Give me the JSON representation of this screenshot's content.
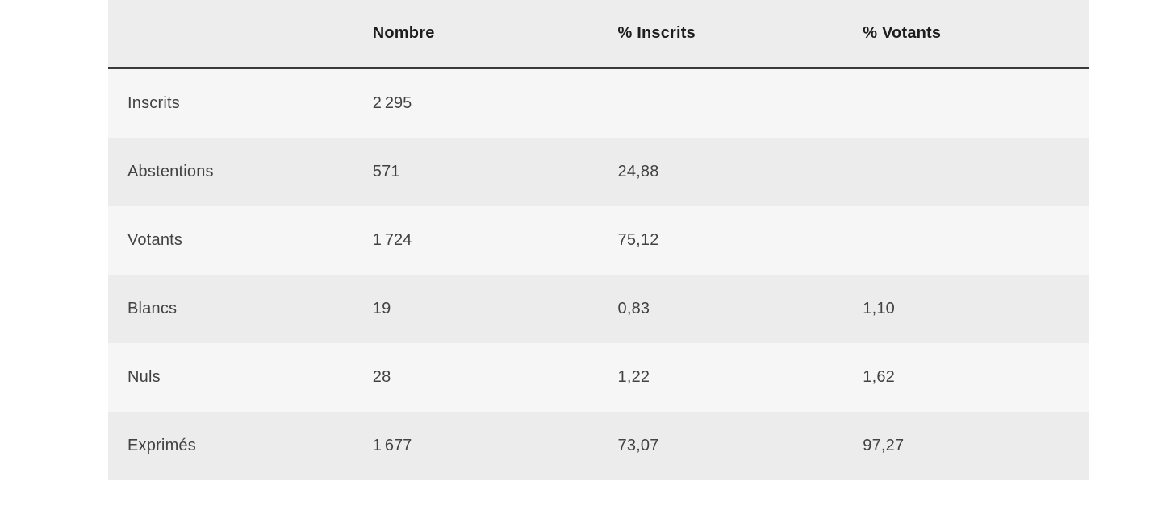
{
  "colors": {
    "page_background": "#ffffff",
    "header_background": "#ededed",
    "row_odd_background": "#f6f6f6",
    "row_even_background": "#ececec",
    "header_rule": "#3a3a3a",
    "header_text": "#1d1d1d",
    "body_text": "#424242"
  },
  "chart_data": {
    "type": "table",
    "title": "",
    "columns": [
      "",
      "Nombre",
      "% Inscrits",
      "% Votants"
    ],
    "rows": [
      {
        "label": "Inscrits",
        "nombre": "2 295",
        "pct_inscrits": "",
        "pct_votants": ""
      },
      {
        "label": "Abstentions",
        "nombre": "571",
        "pct_inscrits": "24,88",
        "pct_votants": ""
      },
      {
        "label": "Votants",
        "nombre": "1 724",
        "pct_inscrits": "75,12",
        "pct_votants": ""
      },
      {
        "label": "Blancs",
        "nombre": "19",
        "pct_inscrits": "0,83",
        "pct_votants": "1,10"
      },
      {
        "label": "Nuls",
        "nombre": "28",
        "pct_inscrits": "1,22",
        "pct_votants": "1,62"
      },
      {
        "label": "Exprimés",
        "nombre": "1 677",
        "pct_inscrits": "73,07",
        "pct_votants": "97,27"
      }
    ]
  }
}
